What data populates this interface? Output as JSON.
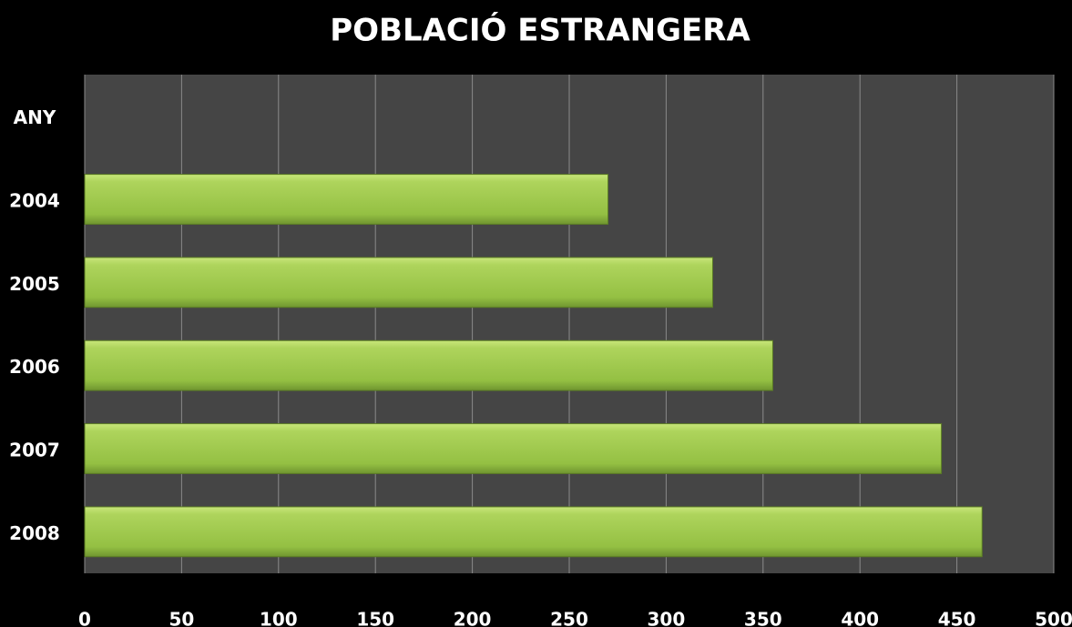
{
  "chart_data": {
    "type": "bar",
    "orientation": "horizontal",
    "title": "POBLACIÓ ESTRANGERA",
    "categories": [
      "ANY",
      "2004",
      "2005",
      "2006",
      "2007",
      "2008"
    ],
    "values": [
      null,
      270,
      324,
      355,
      442,
      463
    ],
    "color": "#9bc64a",
    "xlim": [
      0,
      500
    ],
    "xticks": [
      0,
      50,
      100,
      150,
      200,
      250,
      300,
      350,
      400,
      450,
      500
    ],
    "grid": true
  }
}
